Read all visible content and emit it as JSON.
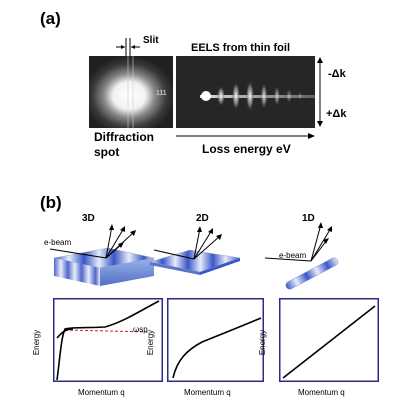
{
  "figure": {
    "panel_a": {
      "label": "(a)",
      "slit_label": "Slit",
      "eels_title": "EELS from thin foil",
      "spot_index": "111",
      "minus_dk": "-Δk",
      "plus_dk": "+Δk",
      "diffraction_spot_label_1": "Diffraction",
      "diffraction_spot_label_2": "spot",
      "loss_energy_label": "Loss energy eV"
    },
    "panel_b": {
      "label": "(b)",
      "dim_3d": "3D",
      "dim_2d": "2D",
      "dim_1d": "1D",
      "ebeam_label": "e-beam",
      "plots": [
        {
          "ylabel": "Energy",
          "xlabel": "Momentum q",
          "annotation": "ωsp"
        },
        {
          "ylabel": "Energy",
          "xlabel": "Momentum q"
        },
        {
          "ylabel": "Energy",
          "xlabel": "Momentum q"
        }
      ]
    },
    "colors": {
      "plot_frame": "#2b2b86",
      "slab_blue": "#3a56c8",
      "dashed_red": "#d02020"
    }
  }
}
